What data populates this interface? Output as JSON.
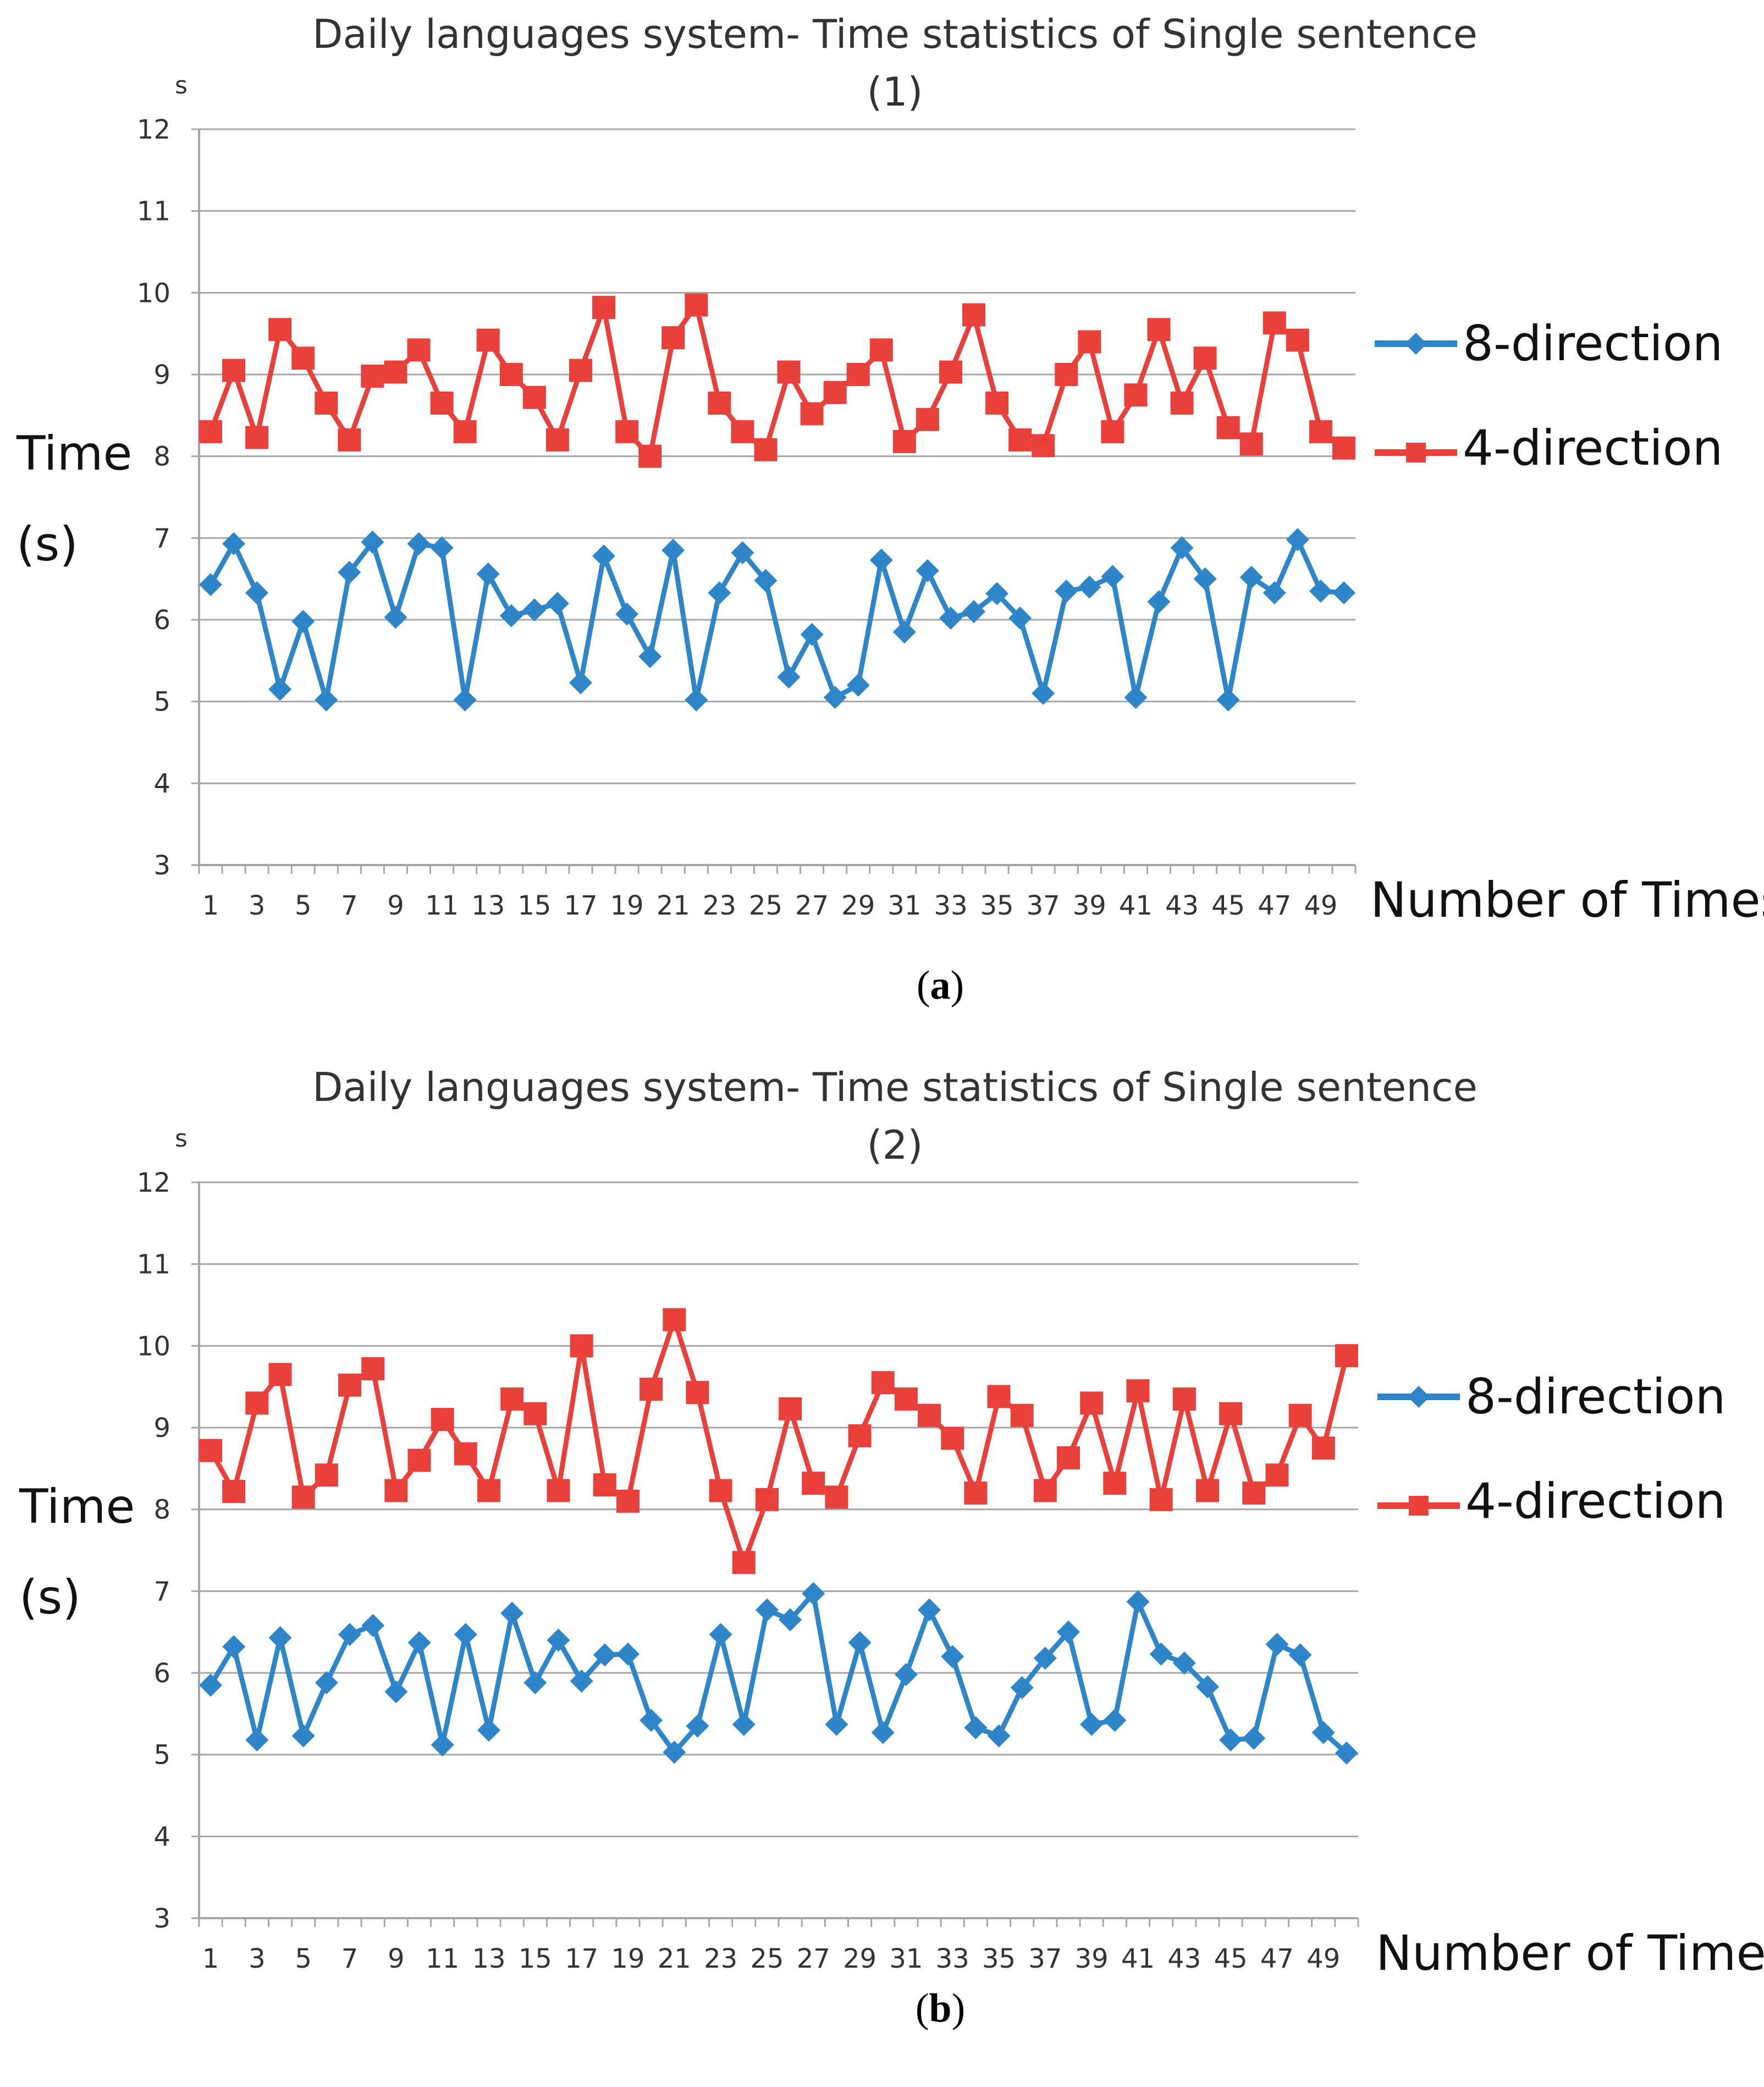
{
  "chart_data": [
    {
      "type": "line",
      "panel": "a",
      "title": "Daily languages system- Time statistics of Single sentence",
      "subtitle": "(1)",
      "unit": "s",
      "ylabel_line1": "Time",
      "ylabel_line2": "(s)",
      "xlabel": "Number of Times",
      "caption_letter": "a",
      "ylim": [
        3,
        12
      ],
      "yticks": [
        3,
        4,
        5,
        6,
        7,
        8,
        9,
        10,
        11,
        12
      ],
      "x": [
        1,
        2,
        3,
        4,
        5,
        6,
        7,
        8,
        9,
        10,
        11,
        12,
        13,
        14,
        15,
        16,
        17,
        18,
        19,
        20,
        21,
        22,
        23,
        24,
        25,
        26,
        27,
        28,
        29,
        30,
        31,
        32,
        33,
        34,
        35,
        36,
        37,
        38,
        39,
        40,
        41,
        42,
        43,
        44,
        45,
        46,
        47,
        48,
        49,
        50
      ],
      "xtick_labels": [
        "1",
        "3",
        "5",
        "7",
        "9",
        "11",
        "13",
        "15",
        "17",
        "19",
        "21",
        "23",
        "25",
        "27",
        "29",
        "31",
        "33",
        "35",
        "37",
        "39",
        "41",
        "43",
        "45",
        "47",
        "49"
      ],
      "series": [
        {
          "name": "8-direction",
          "color": "#2E86C8",
          "marker": "diamond",
          "values": [
            6.43,
            6.93,
            6.33,
            5.15,
            5.98,
            5.02,
            6.58,
            6.95,
            6.03,
            6.93,
            6.88,
            5.02,
            6.56,
            6.05,
            6.12,
            6.2,
            5.23,
            6.78,
            6.07,
            5.55,
            6.85,
            5.02,
            6.33,
            6.82,
            6.48,
            5.3,
            5.82,
            5.05,
            5.2,
            6.73,
            5.85,
            6.6,
            6.02,
            6.1,
            6.32,
            6.02,
            5.1,
            6.35,
            6.4,
            6.53,
            5.05,
            6.22,
            6.88,
            6.5,
            5.02,
            6.52,
            6.33,
            6.98,
            6.35,
            6.33
          ]
        },
        {
          "name": "4-direction",
          "color": "#E8413C",
          "marker": "square",
          "values": [
            8.3,
            9.05,
            8.23,
            9.55,
            9.2,
            8.65,
            8.2,
            8.98,
            9.03,
            9.3,
            8.65,
            8.3,
            9.42,
            9.0,
            8.72,
            8.2,
            9.05,
            9.82,
            8.3,
            8.0,
            9.45,
            9.85,
            8.65,
            8.3,
            8.08,
            9.03,
            8.52,
            8.78,
            9.0,
            9.3,
            8.18,
            8.45,
            9.03,
            9.73,
            8.65,
            8.2,
            8.13,
            9.0,
            9.4,
            8.3,
            8.75,
            9.55,
            8.65,
            9.2,
            8.35,
            8.15,
            9.63,
            9.42,
            8.3,
            8.1
          ]
        }
      ]
    },
    {
      "type": "line",
      "panel": "b",
      "title": "Daily languages system- Time statistics of Single sentence",
      "subtitle": "(2)",
      "unit": "s",
      "ylabel_line1": "Time",
      "ylabel_line2": "(s)",
      "xlabel": "Number of Times",
      "caption_letter": "b",
      "ylim": [
        3,
        12
      ],
      "yticks": [
        3,
        4,
        5,
        6,
        7,
        8,
        9,
        10,
        11,
        12
      ],
      "x": [
        1,
        2,
        3,
        4,
        5,
        6,
        7,
        8,
        9,
        10,
        11,
        12,
        13,
        14,
        15,
        16,
        17,
        18,
        19,
        20,
        21,
        22,
        23,
        24,
        25,
        26,
        27,
        28,
        29,
        30,
        31,
        32,
        33,
        34,
        35,
        36,
        37,
        38,
        39,
        40,
        41,
        42,
        43,
        44,
        45,
        46,
        47,
        48,
        49,
        50
      ],
      "xtick_labels": [
        "1",
        "3",
        "5",
        "7",
        "9",
        "11",
        "13",
        "15",
        "17",
        "19",
        "21",
        "23",
        "25",
        "27",
        "29",
        "31",
        "33",
        "35",
        "37",
        "39",
        "41",
        "43",
        "45",
        "47",
        "49"
      ],
      "series": [
        {
          "name": "8-direction",
          "color": "#2E86C8",
          "marker": "diamond",
          "values": [
            5.85,
            6.32,
            5.18,
            6.43,
            5.23,
            5.88,
            6.47,
            6.58,
            5.77,
            6.37,
            5.12,
            6.47,
            5.3,
            6.73,
            5.88,
            6.4,
            5.9,
            6.22,
            6.23,
            5.42,
            5.03,
            5.35,
            6.47,
            5.37,
            6.77,
            6.65,
            6.97,
            5.37,
            6.37,
            5.27,
            5.98,
            6.77,
            6.2,
            5.33,
            5.23,
            5.82,
            6.18,
            6.5,
            5.37,
            5.42,
            6.87,
            6.23,
            6.12,
            5.83,
            5.18,
            5.2,
            6.35,
            6.22,
            5.27,
            5.02
          ]
        },
        {
          "name": "4-direction",
          "color": "#E8413C",
          "marker": "square",
          "values": [
            8.72,
            8.22,
            9.3,
            9.65,
            8.15,
            8.42,
            9.52,
            9.72,
            8.23,
            8.6,
            9.1,
            8.68,
            8.23,
            9.35,
            9.17,
            8.23,
            10.0,
            8.3,
            8.1,
            9.47,
            10.32,
            9.43,
            8.23,
            7.35,
            8.12,
            9.23,
            8.32,
            8.15,
            8.9,
            9.55,
            9.35,
            9.15,
            8.87,
            8.2,
            9.38,
            9.15,
            8.23,
            8.63,
            9.3,
            8.32,
            9.45,
            8.12,
            9.35,
            8.23,
            9.17,
            8.2,
            8.42,
            9.15,
            8.75,
            9.88
          ]
        }
      ]
    }
  ]
}
